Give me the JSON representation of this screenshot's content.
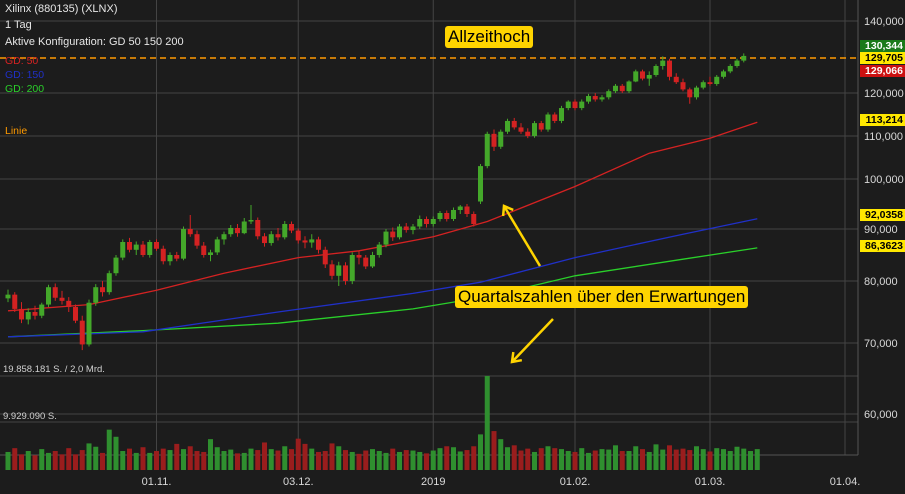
{
  "header": {
    "title": "Xilinx (880135) (XLNX)",
    "interval": "1 Tag",
    "config": "Aktive Konfiguration: GD 50 150 200"
  },
  "legend": {
    "gd50": {
      "label": "GD: 50",
      "color": "#d42222"
    },
    "gd150": {
      "label": "GD: 150",
      "color": "#2030c8"
    },
    "gd200": {
      "label": "GD: 200",
      "color": "#2ad02a"
    },
    "line": {
      "label": "Linie",
      "color": "#ff9a00"
    }
  },
  "volume_labels": {
    "top": "19.858.181 S. / 2,0 Mrd.",
    "mid": "9.929.090 S."
  },
  "annotations": {
    "ath": "Allzeithoch",
    "earnings": "Quartalszahlen über den Erwartungen"
  },
  "price_tags": {
    "close": "130,344",
    "ath_line": "129,705",
    "prev": "129,066",
    "gd50": "113,214",
    "gd150": "92,0358",
    "gd200": "86,3623"
  },
  "colors": {
    "up": "#44a82a",
    "down": "#d42222",
    "callout": "#ffd400",
    "ath_line": "#ff9a00",
    "tag_close": "#1a7a1a",
    "tag_ath": "#ffe800",
    "tag_prev": "#cc1111",
    "tag_gd50": "#ffe800",
    "tag_gd150": "#ffe800",
    "tag_gd200": "#ffe800"
  },
  "chart_data": {
    "type": "candlestick",
    "y_ticks": [
      140,
      120,
      110,
      100,
      90,
      80,
      70,
      60
    ],
    "y_tick_labels": [
      "140,000",
      "120,000",
      "110,000",
      "100,000",
      "90,000",
      "80,000",
      "70,000",
      "60,000"
    ],
    "x_tick_labels": [
      "01.11.",
      "03.12.",
      "2019",
      "01.02.",
      "01.03.",
      "01.04."
    ],
    "x_tick_indices": [
      22,
      43,
      63,
      84,
      104,
      124
    ],
    "horizontal_line": 129.705,
    "candles": [
      [
        77.2,
        78.6,
        76.6,
        77.8
      ],
      [
        77.8,
        78.2,
        75.0,
        75.5
      ],
      [
        75.5,
        76.6,
        73.2,
        73.8
      ],
      [
        73.8,
        75.6,
        73.0,
        75.0
      ],
      [
        75.0,
        76.0,
        73.8,
        74.4
      ],
      [
        74.4,
        76.5,
        74.0,
        76.2
      ],
      [
        76.2,
        79.4,
        75.8,
        79.0
      ],
      [
        79.0,
        79.6,
        76.8,
        77.3
      ],
      [
        77.3,
        78.4,
        76.2,
        76.8
      ],
      [
        76.8,
        77.4,
        75.0,
        75.8
      ],
      [
        75.8,
        76.2,
        73.2,
        73.6
      ],
      [
        73.6,
        74.4,
        69.0,
        69.8
      ],
      [
        69.8,
        77.0,
        69.5,
        76.5
      ],
      [
        76.5,
        79.5,
        76.0,
        79.0
      ],
      [
        79.0,
        80.0,
        77.5,
        78.2
      ],
      [
        78.2,
        82.0,
        77.8,
        81.5
      ],
      [
        81.5,
        85.0,
        81.0,
        84.5
      ],
      [
        84.5,
        88.0,
        84.0,
        87.5
      ],
      [
        87.5,
        88.3,
        85.5,
        86.0
      ],
      [
        86.0,
        87.6,
        85.0,
        87.0
      ],
      [
        87.0,
        87.7,
        84.6,
        85.0
      ],
      [
        85.0,
        87.9,
        84.5,
        87.5
      ],
      [
        87.5,
        88.0,
        85.8,
        86.2
      ],
      [
        86.2,
        86.8,
        83.2,
        83.8
      ],
      [
        83.8,
        85.5,
        83.0,
        85.0
      ],
      [
        85.0,
        85.6,
        83.8,
        84.3
      ],
      [
        84.3,
        90.5,
        84.0,
        90.0
      ],
      [
        90.0,
        92.8,
        88.5,
        89.0
      ],
      [
        89.0,
        89.7,
        86.2,
        86.8
      ],
      [
        86.8,
        87.5,
        84.5,
        85.0
      ],
      [
        85.0,
        86.0,
        83.8,
        85.5
      ],
      [
        85.5,
        88.5,
        85.0,
        88.0
      ],
      [
        88.0,
        89.5,
        87.0,
        89.0
      ],
      [
        89.0,
        90.8,
        88.5,
        90.2
      ],
      [
        90.2,
        91.0,
        88.5,
        89.2
      ],
      [
        89.2,
        92.2,
        89.0,
        91.5
      ],
      [
        91.5,
        94.8,
        91.0,
        91.8
      ],
      [
        91.8,
        92.3,
        88.0,
        88.6
      ],
      [
        88.6,
        89.2,
        86.6,
        87.3
      ],
      [
        87.3,
        89.6,
        86.8,
        89.0
      ],
      [
        89.0,
        90.2,
        87.8,
        88.4
      ],
      [
        88.4,
        91.6,
        88.0,
        91.0
      ],
      [
        91.0,
        91.5,
        89.2,
        89.7
      ],
      [
        89.7,
        90.1,
        87.2,
        87.8
      ],
      [
        87.8,
        88.6,
        86.3,
        87.4
      ],
      [
        87.4,
        89.0,
        86.4,
        88.0
      ],
      [
        88.0,
        88.5,
        85.3,
        86.0
      ],
      [
        86.0,
        86.6,
        82.5,
        83.2
      ],
      [
        83.2,
        84.0,
        80.3,
        81.0
      ],
      [
        81.0,
        83.7,
        79.2,
        83.0
      ],
      [
        83.0,
        83.6,
        79.4,
        80.0
      ],
      [
        80.0,
        85.5,
        79.5,
        85.0
      ],
      [
        85.0,
        85.7,
        83.2,
        84.5
      ],
      [
        84.5,
        85.0,
        82.3,
        82.8
      ],
      [
        82.8,
        85.6,
        82.5,
        85.0
      ],
      [
        85.0,
        87.5,
        84.5,
        87.0
      ],
      [
        87.0,
        90.0,
        86.5,
        89.5
      ],
      [
        89.5,
        90.3,
        87.7,
        88.4
      ],
      [
        88.4,
        91.0,
        88.0,
        90.5
      ],
      [
        90.5,
        91.2,
        89.3,
        89.8
      ],
      [
        89.8,
        91.0,
        89.0,
        90.5
      ],
      [
        90.5,
        92.7,
        90.0,
        92.0
      ],
      [
        92.0,
        92.5,
        90.3,
        91.0
      ],
      [
        91.0,
        92.5,
        90.5,
        92.0
      ],
      [
        92.0,
        93.6,
        91.5,
        93.2
      ],
      [
        93.2,
        93.7,
        91.5,
        92.0
      ],
      [
        92.0,
        94.3,
        91.6,
        93.8
      ],
      [
        93.8,
        94.8,
        93.0,
        94.5
      ],
      [
        94.5,
        95.0,
        92.4,
        93.0
      ],
      [
        93.0,
        93.5,
        90.5,
        91.0
      ],
      [
        95.5,
        103.5,
        95.0,
        103.0
      ],
      [
        103.0,
        111.0,
        102.5,
        110.5
      ],
      [
        110.5,
        111.5,
        106.5,
        107.5
      ],
      [
        107.5,
        111.5,
        107.0,
        111.0
      ],
      [
        111.0,
        114.0,
        110.5,
        113.5
      ],
      [
        113.5,
        114.2,
        111.5,
        112.0
      ],
      [
        112.0,
        113.0,
        110.5,
        111.0
      ],
      [
        111.0,
        111.8,
        109.5,
        110.0
      ],
      [
        110.0,
        113.5,
        109.6,
        113.0
      ],
      [
        113.0,
        113.5,
        111.0,
        111.5
      ],
      [
        111.5,
        115.5,
        111.0,
        115.0
      ],
      [
        115.0,
        115.5,
        113.0,
        113.5
      ],
      [
        113.5,
        117.0,
        113.0,
        116.5
      ],
      [
        116.5,
        118.3,
        116.0,
        118.0
      ],
      [
        118.0,
        118.5,
        116.0,
        116.5
      ],
      [
        116.5,
        118.5,
        116.0,
        118.0
      ],
      [
        118.0,
        119.8,
        117.5,
        119.3
      ],
      [
        119.3,
        120.0,
        118.0,
        118.5
      ],
      [
        118.5,
        119.5,
        118.0,
        119.0
      ],
      [
        119.0,
        121.0,
        118.5,
        120.5
      ],
      [
        120.5,
        122.5,
        120.0,
        122.0
      ],
      [
        122.0,
        122.5,
        120.0,
        120.5
      ],
      [
        120.5,
        123.5,
        120.0,
        123.2
      ],
      [
        123.2,
        126.5,
        123.0,
        126.0
      ],
      [
        126.0,
        126.5,
        123.5,
        124.0
      ],
      [
        124.0,
        126.0,
        122.0,
        125.0
      ],
      [
        125.0,
        128.0,
        124.5,
        127.5
      ],
      [
        127.5,
        130.2,
        126.5,
        129.0
      ],
      [
        129.0,
        129.5,
        123.5,
        124.5
      ],
      [
        124.5,
        125.5,
        122.5,
        123.0
      ],
      [
        123.0,
        124.0,
        120.5,
        121.0
      ],
      [
        121.0,
        121.5,
        117.5,
        119.0
      ],
      [
        119.0,
        122.0,
        118.5,
        121.5
      ],
      [
        121.5,
        123.5,
        121.0,
        123.0
      ],
      [
        123.0,
        124.5,
        122.0,
        122.5
      ],
      [
        122.5,
        125.0,
        122.0,
        124.5
      ],
      [
        124.5,
        126.5,
        124.0,
        126.0
      ],
      [
        126.0,
        128.0,
        125.5,
        127.5
      ],
      [
        127.5,
        129.5,
        127.0,
        129.0
      ],
      [
        129.0,
        131.0,
        128.5,
        130.3
      ]
    ],
    "volumes": [
      3.8,
      4.6,
      3.3,
      4.0,
      3.1,
      4.4,
      3.6,
      4.0,
      3.3,
      4.6,
      3.3,
      4.2,
      5.6,
      4.9,
      3.6,
      8.5,
      7.0,
      4.0,
      4.5,
      3.6,
      4.8,
      3.6,
      4.0,
      4.5,
      4.2,
      5.5,
      4.4,
      5.0,
      4.0,
      3.8,
      6.5,
      4.8,
      4.0,
      4.3,
      3.5,
      3.6,
      4.5,
      4.2,
      5.8,
      4.4,
      4.1,
      5.0,
      4.4,
      6.6,
      5.5,
      4.5,
      3.8,
      4.0,
      5.6,
      5.0,
      4.2,
      3.8,
      3.4,
      4.1,
      4.4,
      4.0,
      3.6,
      4.5,
      3.8,
      4.2,
      4.1,
      3.8,
      3.5,
      4.1,
      4.6,
      5.0,
      4.8,
      3.9,
      4.2,
      5.0,
      7.5,
      19.8,
      8.2,
      6.5,
      4.8,
      5.2,
      4.1,
      4.5,
      3.8,
      4.6,
      5.0,
      4.6,
      4.4,
      4.0,
      3.8,
      4.6,
      3.6,
      4.1,
      4.4,
      4.3,
      5.2,
      4.0,
      4.0,
      5.0,
      4.4,
      3.8,
      5.4,
      4.3,
      5.2,
      4.3,
      4.5,
      4.2,
      5.0,
      4.4,
      3.9,
      4.6,
      4.4,
      4.0,
      4.9,
      4.5,
      4.0,
      4.4
    ],
    "gd50": [
      [
        0,
        75.2
      ],
      [
        12,
        76.2
      ],
      [
        22,
        78.5
      ],
      [
        32,
        81.5
      ],
      [
        43,
        84.5
      ],
      [
        52,
        85.8
      ],
      [
        63,
        88.5
      ],
      [
        71,
        91.5
      ],
      [
        84,
        98.5
      ],
      [
        95,
        106.0
      ],
      [
        104,
        109.5
      ],
      [
        111,
        113.214
      ]
    ],
    "gd150": [
      [
        0,
        71.0
      ],
      [
        20,
        71.8
      ],
      [
        40,
        75.0
      ],
      [
        60,
        78.0
      ],
      [
        70,
        79.8
      ],
      [
        84,
        84.5
      ],
      [
        100,
        89.0
      ],
      [
        111,
        92.0358
      ]
    ],
    "gd200": [
      [
        0,
        71.0
      ],
      [
        20,
        72.0
      ],
      [
        40,
        73.2
      ],
      [
        60,
        75.5
      ],
      [
        71,
        77.5
      ],
      [
        84,
        81.0
      ],
      [
        100,
        84.2
      ],
      [
        111,
        86.3623
      ]
    ]
  }
}
